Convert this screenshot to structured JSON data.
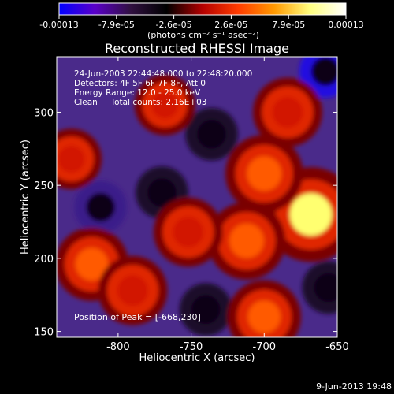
{
  "chart_data": {
    "type": "heatmap",
    "title": "Reconstructed RHESSI Image",
    "xlabel": "Heliocentric X (arcsec)",
    "ylabel": "Heliocentric Y (arcsec)",
    "x_ticks": [
      "-800",
      "-750",
      "-700",
      "-650"
    ],
    "y_ticks": [
      "300",
      "250",
      "200",
      "150"
    ],
    "xlim": [
      -842,
      -650
    ],
    "ylim": [
      146,
      338
    ],
    "colorbar": {
      "tick_labels": [
        "-0.00013",
        "-7.9e-05",
        "-2.6e-05",
        "2.6e-05",
        "7.9e-05",
        "0.00013"
      ],
      "range": [
        -0.00013,
        0.00013
      ],
      "unit_label": "(photons cm⁻² s⁻¹ asec⁻²)",
      "colors": [
        "#0000ff",
        "#5a00c8",
        "#301040",
        "#000000",
        "#b40000",
        "#ff3c00",
        "#ff9900",
        "#ffff80",
        "#ffffff"
      ]
    },
    "annotations": [
      "24-Jun-2003 22:44:48.000 to 22:48:20.000",
      "Detectors: 4F 5F 6F 7F 8F, Att 0",
      "Energy Range: 12.0 - 25.0 keV",
      "Clean     Total counts: 2.16E+03"
    ],
    "peak_text": "Position of Peak = [-668,230]",
    "peak": [
      -668,
      230
    ],
    "bright_sources": [
      {
        "x": -668,
        "y": 230,
        "value": 0.00013
      },
      {
        "x": -700,
        "y": 258,
        "value": 9e-05
      },
      {
        "x": -712,
        "y": 212,
        "value": 9e-05
      },
      {
        "x": -684,
        "y": 300,
        "value": 7e-05
      },
      {
        "x": -700,
        "y": 160,
        "value": 8e-05
      },
      {
        "x": -818,
        "y": 196,
        "value": 8e-05
      },
      {
        "x": -790,
        "y": 178,
        "value": 7e-05
      },
      {
        "x": -752,
        "y": 218,
        "value": 7e-05
      },
      {
        "x": -768,
        "y": 305,
        "value": 5e-05
      },
      {
        "x": -832,
        "y": 268,
        "value": 5e-05
      }
    ],
    "negative_regions": [
      {
        "x": -812,
        "y": 235,
        "value": -8e-05
      },
      {
        "x": -770,
        "y": 245,
        "value": -7e-05
      },
      {
        "x": -740,
        "y": 165,
        "value": -7e-05
      },
      {
        "x": -658,
        "y": 328,
        "value": -0.00013
      },
      {
        "x": -736,
        "y": 285,
        "value": -6e-05
      },
      {
        "x": -656,
        "y": 180,
        "value": -6e-05
      }
    ]
  },
  "footer_date": "9-Jun-2013 19:48"
}
